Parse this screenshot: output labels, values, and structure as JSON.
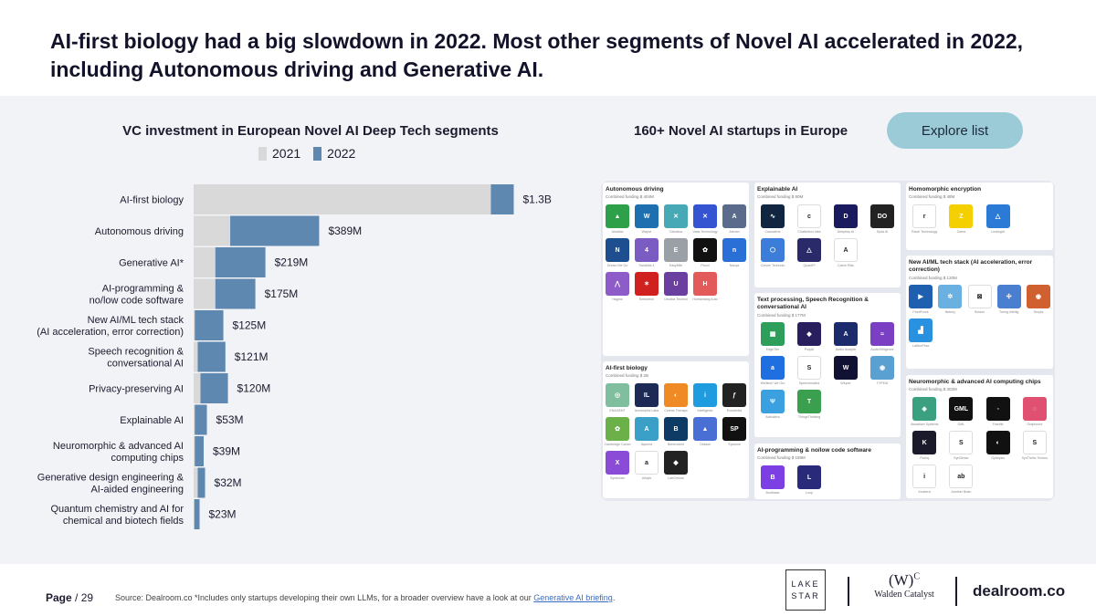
{
  "title": "AI-first biology had a big slowdown in 2022. Most other segments of Novel AI accelerated in 2022, including Autonomous driving and Generative AI.",
  "chart_data": {
    "type": "bar",
    "orientation": "horizontal",
    "stacked": "overlay",
    "title": "VC investment in European Novel AI Deep Tech segments",
    "categories": [
      "AI-first biology",
      "Autonomous driving",
      "Generative AI*",
      "AI-programming &\nno/low code software",
      "New AI/ML tech stack\n(AI acceleration, error correction)",
      "Speech recognition &\nconversational AI",
      "Privacy-preserving AI",
      "Explainable AI",
      "Neuromorphic & advanced AI\ncomputing chips",
      "Generative design engineering &\nAI-aided engineering",
      "Quantum chemistry and AI for\nchemical and biotech fields"
    ],
    "series": [
      {
        "name": "2021",
        "color": "#d9d9d9",
        "values": [
          1300,
          160,
          95,
          95,
          5,
          18,
          30,
          5,
          5,
          18,
          3
        ]
      },
      {
        "name": "2022",
        "color": "#5e88b0",
        "values": [
          100,
          389,
          219,
          175,
          125,
          121,
          120,
          53,
          39,
          32,
          23
        ]
      }
    ],
    "data_labels": [
      "$1.3B",
      "$389M",
      "$219M",
      "$175M",
      "$125M",
      "$121M",
      "$120M",
      "$53M",
      "$39M",
      "$32M",
      "$23M"
    ],
    "units": "USD millions",
    "xlim": [
      0,
      1430
    ],
    "legend_position": "top",
    "grid": false
  },
  "right_title": "160+ Novel AI startups  in Europe",
  "explore_button": "Explore list",
  "landscape": {
    "categories": [
      {
        "title": "Autonomous driving",
        "funding": "Combined funding $ 404M",
        "logos": [
          {
            "name": "Alnatica",
            "color": "#2ea04a",
            "glyph": "▲"
          },
          {
            "name": "Wayve",
            "color": "#1e6fb0",
            "glyph": "W"
          },
          {
            "name": "Oxbotica",
            "color": "#46a9b5",
            "glyph": "✕"
          },
          {
            "name": "Vaas Technology",
            "color": "#3454d1",
            "glyph": "✕"
          },
          {
            "name": "Alerion",
            "color": "#5a6b8c",
            "glyph": "A"
          },
          {
            "name": "Dream Me Go",
            "color": "#1d4e8f",
            "glyph": "N"
          },
          {
            "name": "Sarabilia 4",
            "color": "#7a5cc2",
            "glyph": "4"
          },
          {
            "name": "EasyMile",
            "color": "#9aa0a6",
            "glyph": "E"
          },
          {
            "name": "Pixcel",
            "color": "#111111",
            "glyph": "✿"
          },
          {
            "name": "Nauya",
            "color": "#2a6fd6",
            "glyph": "n"
          },
          {
            "name": "Hagmo",
            "color": "#8e5cc8",
            "glyph": "⋀"
          },
          {
            "name": "Embotech",
            "color": "#d02020",
            "glyph": "✶"
          },
          {
            "name": "Ubotica Technol",
            "color": "#6b3fa0",
            "glyph": "U"
          },
          {
            "name": "Humanising Auto",
            "color": "#e25a5a",
            "glyph": "H"
          }
        ]
      },
      {
        "title": "AI-first biology",
        "funding": "Combined funding $ 2B",
        "logos": [
          {
            "name": "ENAGENT",
            "color": "#7fbf9f",
            "glyph": "◎"
          },
          {
            "name": "Isomorphic Labs",
            "color": "#1d2a55",
            "glyph": "IL"
          },
          {
            "name": "Celeris Therapx",
            "color": "#f08a24",
            "glyph": "◐"
          },
          {
            "name": "Intelligenic",
            "color": "#1f9be0",
            "glyph": "i"
          },
          {
            "name": "Exscientia",
            "color": "#222222",
            "glyph": "ƒ"
          },
          {
            "name": "Cambridge Cance",
            "color": "#6cb04a",
            "glyph": "✿"
          },
          {
            "name": "Aqemia",
            "color": "#3aa0c8",
            "glyph": "A"
          },
          {
            "name": "Benevolent",
            "color": "#0e3b66",
            "glyph": "B"
          },
          {
            "name": "Ordaos",
            "color": "#4a6fd4",
            "glyph": "▲"
          },
          {
            "name": "Sparrow",
            "color": "#111111",
            "glyph": "SP"
          },
          {
            "name": "SynthAxis",
            "color": "#8a4cd6",
            "glyph": "X"
          },
          {
            "name": "Allcyte",
            "color": "#ffffff",
            "glyph": "a"
          },
          {
            "name": "LabGenius",
            "color": "#222222",
            "glyph": "◆"
          }
        ]
      },
      {
        "title": "Explainable AI",
        "funding": "Combined funding $ 90M",
        "logos": [
          {
            "name": "Causalens",
            "color": "#0f2540",
            "glyph": "∿"
          },
          {
            "name": "Chatterbox labs",
            "color": "#ffffff",
            "glyph": "c"
          },
          {
            "name": "Deepbay AI",
            "color": "#1a1a5e",
            "glyph": "D"
          },
          {
            "name": "Dyda AI",
            "color": "#222222",
            "glyph": "DO"
          },
          {
            "name": "Corvex Technolo",
            "color": "#3b7dd8",
            "glyph": "⬡"
          },
          {
            "name": "QuantPi",
            "color": "#2a2a6a",
            "glyph": "△"
          },
          {
            "name": "Calvin Risk",
            "color": "#ffffff",
            "glyph": "A"
          }
        ]
      },
      {
        "title": "Text processing, Speech Recognition & conversational AI",
        "funding": "Combined funding $ 177M",
        "logos": [
          {
            "name": "EdgeTier",
            "color": "#2e9e5b",
            "glyph": "▦"
          },
          {
            "name": "PolyAI",
            "color": "#2a1f5e",
            "glyph": "◆"
          },
          {
            "name": "Audio Analytic",
            "color": "#1c2b6b",
            "glyph": "A"
          },
          {
            "name": "AudioTelligence",
            "color": "#7a3fc2",
            "glyph": "≈"
          },
          {
            "name": "Welltech Vel Gro",
            "color": "#1f6fe0",
            "glyph": "a"
          },
          {
            "name": "Speechmatics",
            "color": "#ffffff",
            "glyph": "S"
          },
          {
            "name": "Wluper",
            "color": "#111133",
            "glyph": "W"
          },
          {
            "name": "TYPEAI",
            "color": "#5aa0d0",
            "glyph": "◉"
          },
          {
            "name": "Activatrcs",
            "color": "#3aa0e0",
            "glyph": "Ψ"
          },
          {
            "name": "ThingsThinking",
            "color": "#3aa050",
            "glyph": "T"
          }
        ]
      },
      {
        "title": "AI-programming & no/low code software",
        "funding": "Combined funding $ 189M",
        "logos": [
          {
            "name": "Budibase",
            "color": "#7b3fe4",
            "glyph": "B"
          },
          {
            "name": "Loop",
            "color": "#2a2a7a",
            "glyph": "L"
          }
        ]
      },
      {
        "title": "Homomorphic encryption",
        "funding": "Combined funding $ 48M",
        "logos": [
          {
            "name": "Ravel Technology",
            "color": "#ffffff",
            "glyph": "r"
          },
          {
            "name": "Zama",
            "color": "#f5d000",
            "glyph": "Z"
          },
          {
            "name": "Lindsight",
            "color": "#2a7ad6",
            "glyph": "△"
          }
        ]
      },
      {
        "title": "New AI/ML tech stack (AI acceleration, error correction)",
        "funding": "Combined funding $ 120M",
        "logos": [
          {
            "name": "FeedForce",
            "color": "#1f5fb0",
            "glyph": "▶"
          },
          {
            "name": "Nebuly",
            "color": "#6ab0e0",
            "glyph": "✲"
          },
          {
            "name": "Seldon",
            "color": "#ffffff",
            "glyph": "⊠"
          },
          {
            "name": "Turing Intellig",
            "color": "#4a7fd0",
            "glyph": "✣"
          },
          {
            "name": "Tenyks",
            "color": "#d06030",
            "glyph": "◉"
          },
          {
            "name": "LatticeFlow",
            "color": "#2a90e0",
            "glyph": "▟"
          }
        ]
      },
      {
        "title": "Neuromorphic & advanced AI computing chips",
        "funding": "Combined funding $ 302M",
        "logos": [
          {
            "name": "Vanadium Systems",
            "color": "#3aa080",
            "glyph": "◈"
          },
          {
            "name": "GML",
            "color": "#111111",
            "glyph": "GML"
          },
          {
            "name": "Fractile",
            "color": "#111111",
            "glyph": "◦"
          },
          {
            "name": "Graphcore",
            "color": "#e05070",
            "glyph": "◌"
          },
          {
            "name": "Rubiq",
            "color": "#1a1a2a",
            "glyph": "K"
          },
          {
            "name": "SynSense",
            "color": "#ffffff",
            "glyph": "S"
          },
          {
            "name": "Optalysis",
            "color": "#111111",
            "glyph": "◐"
          },
          {
            "name": "SynThetic Techno",
            "color": "#ffffff",
            "glyph": "S"
          },
          {
            "name": "Innatera",
            "color": "#ffffff",
            "glyph": "i"
          },
          {
            "name": "Another Brain",
            "color": "#ffffff",
            "glyph": "ab"
          }
        ]
      }
    ]
  },
  "footer": {
    "page_label": "Page",
    "page_sep": " / 29",
    "source_text": "Source: Dealroom.co  *Includes only startups developing their own LLMs, for a broader overview have a look at our ",
    "source_link": "Generative AI briefing",
    "source_end": "."
  },
  "logos": {
    "lake_star_line1": "LAKE",
    "lake_star_line2": "STAR",
    "walden_mark": "(W)",
    "walden_sup": "C",
    "walden_name": "Walden Catalyst",
    "dealroom": "dealroom.co"
  }
}
